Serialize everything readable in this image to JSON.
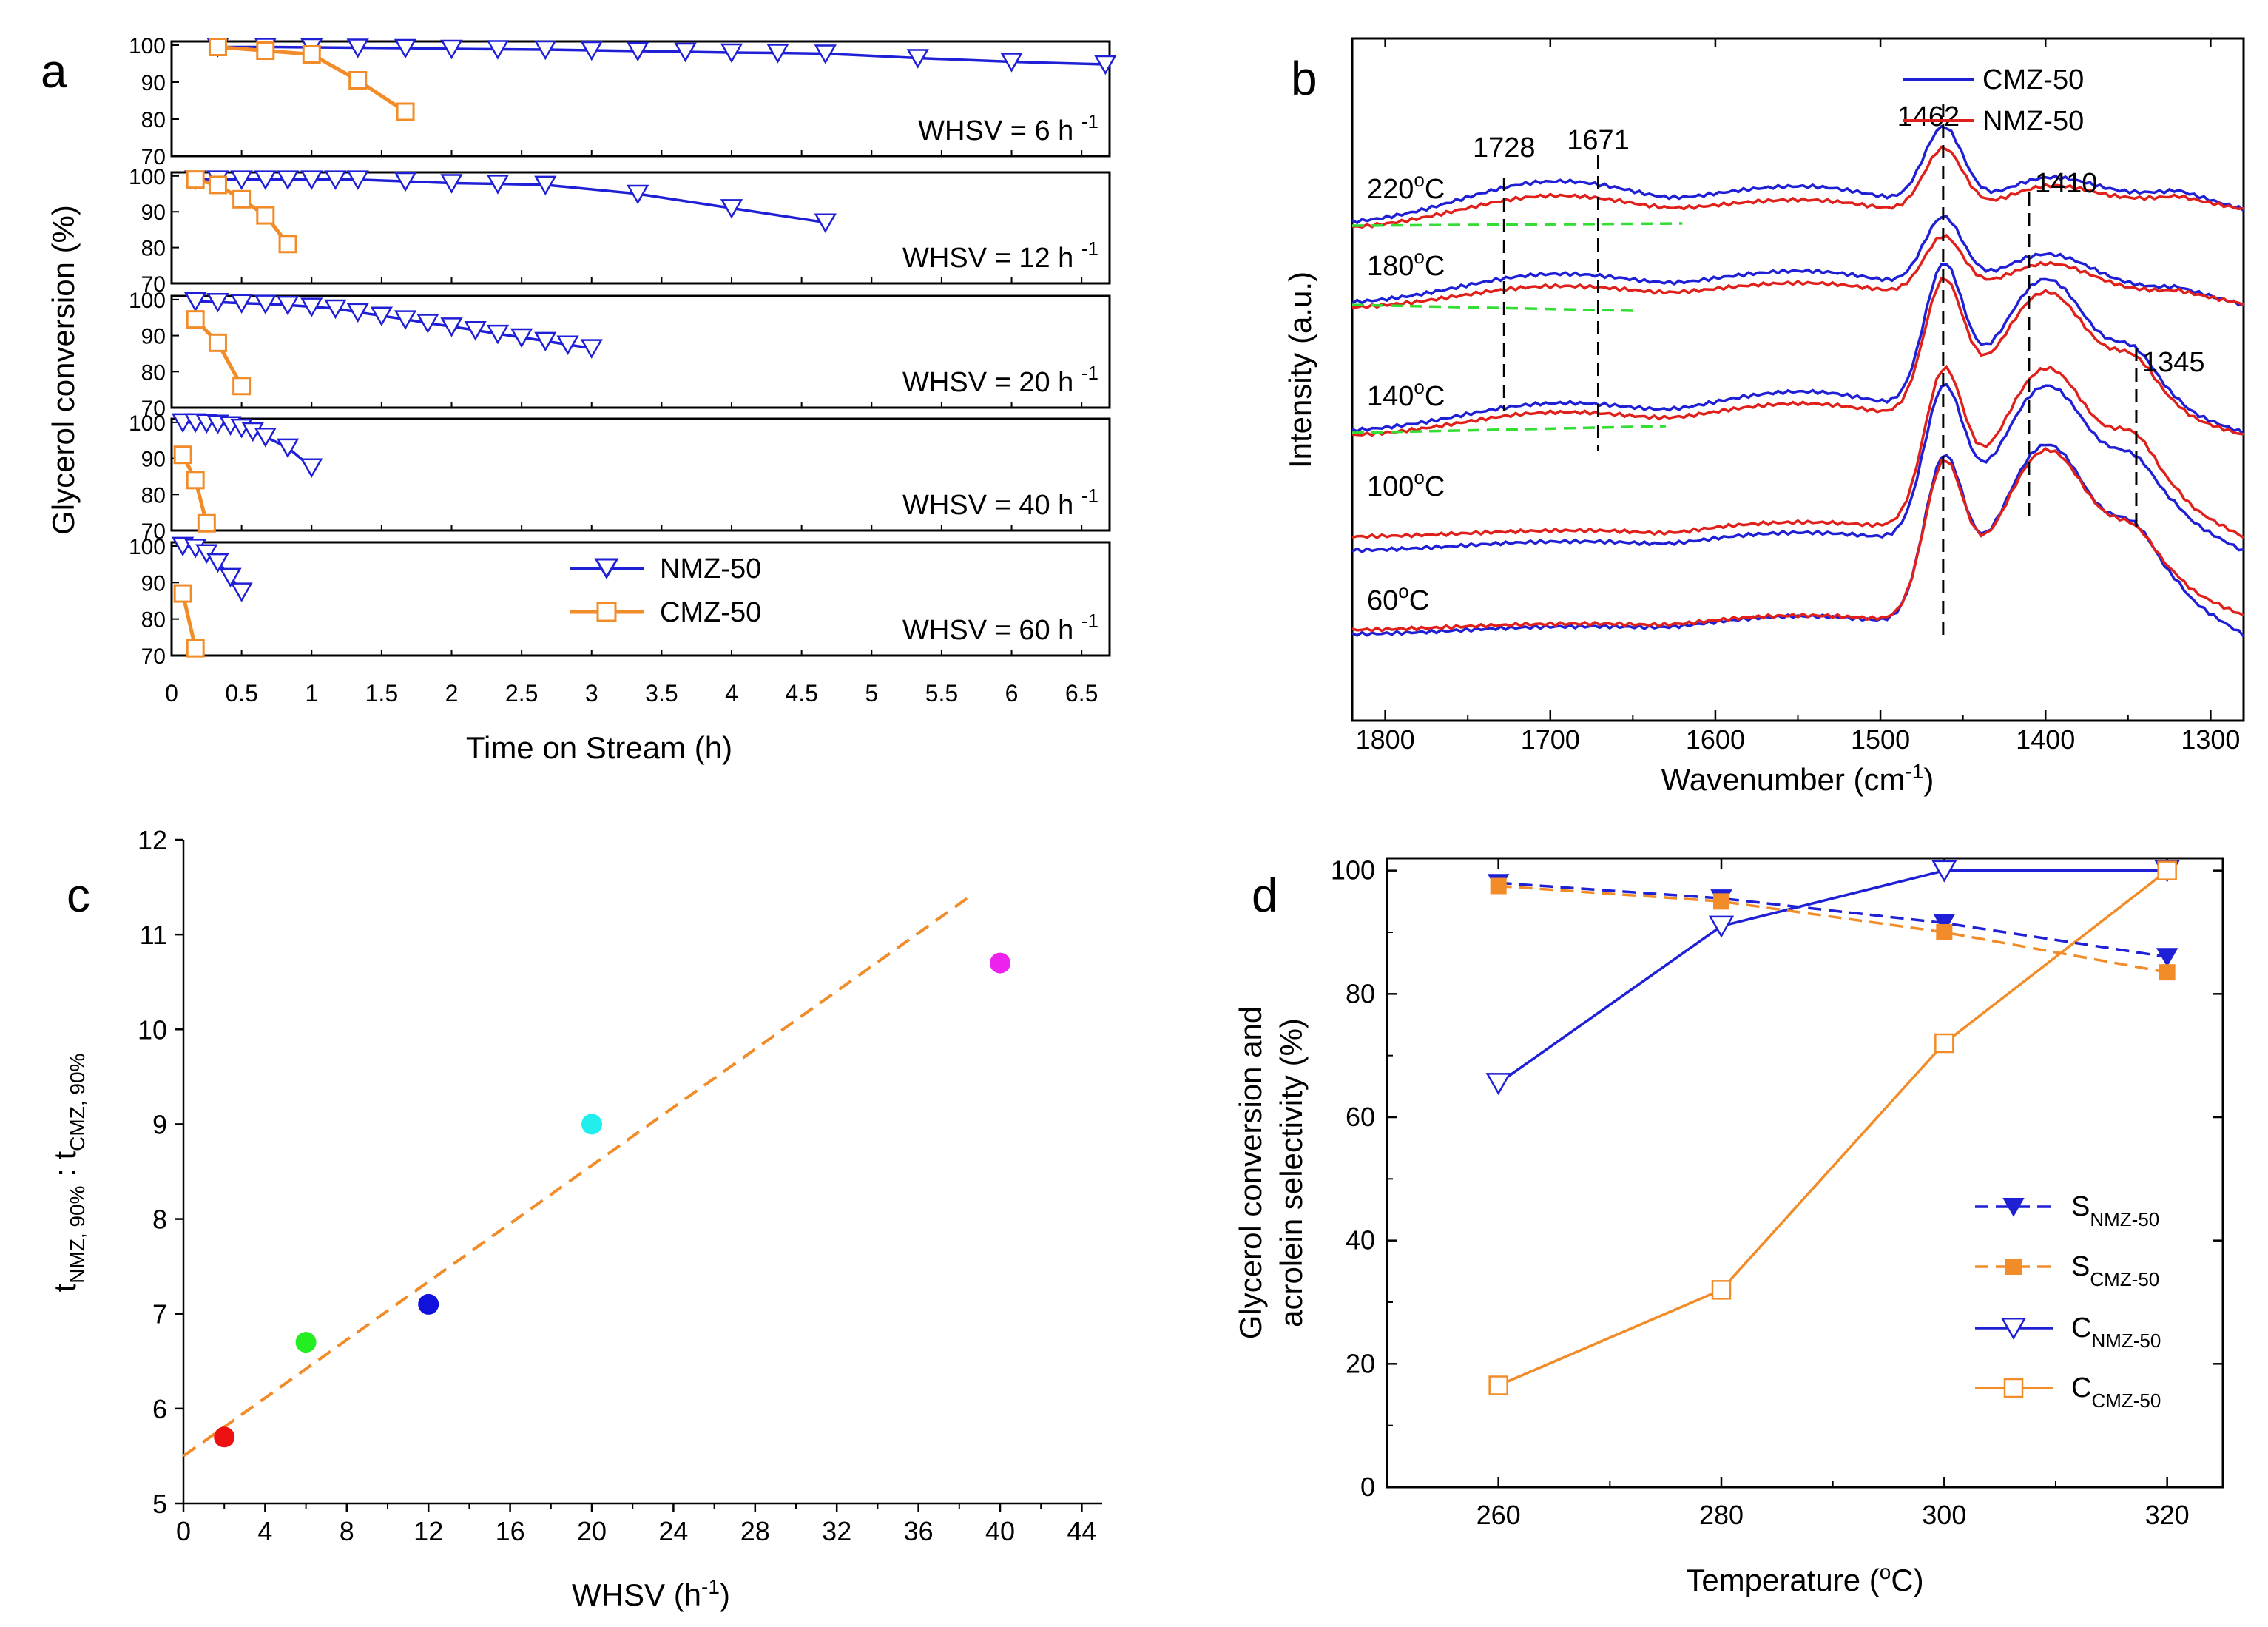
{
  "chart_data": [
    {
      "panel": "a",
      "type": "line",
      "ylabel": "Glycerol conversion (%)",
      "xlabel": "Time on Stream (h)",
      "xlim": [
        0,
        6.7
      ],
      "x_ticks": [
        "0",
        "0.5",
        "1",
        "1.5",
        "2",
        "2.5",
        "3",
        "3.5",
        "4",
        "4.5",
        "5",
        "5.5",
        "6",
        "6.5"
      ],
      "y_ticks": [
        "70",
        "80",
        "90",
        "100"
      ],
      "ylim": [
        70,
        101
      ],
      "legend": [
        "NMZ-50",
        "CMZ-50"
      ],
      "subplots": [
        {
          "label": "WHSV = 6 h",
          "label_sup": "-1",
          "series": [
            {
              "name": "NMZ-50",
              "x": [
                0.33,
                0.67,
                1.0,
                1.33,
                1.67,
                2.0,
                2.33,
                2.67,
                3.0,
                3.33,
                3.67,
                4.0,
                4.33,
                4.67,
                5.33,
                6.0,
                6.67
              ],
              "y": [
                99.5,
                99.5,
                99.4,
                99.3,
                99.2,
                99.0,
                98.9,
                98.8,
                98.6,
                98.4,
                98.2,
                98.0,
                97.9,
                97.7,
                96.5,
                95.5,
                94.8
              ]
            },
            {
              "name": "CMZ-50",
              "x": [
                0.33,
                0.67,
                1.0,
                1.33,
                1.67
              ],
              "y": [
                99.5,
                98.5,
                97.5,
                90.5,
                82
              ]
            }
          ]
        },
        {
          "label": "WHSV = 12 h",
          "label_sup": "-1",
          "series": [
            {
              "name": "NMZ-50",
              "x": [
                0.17,
                0.33,
                0.5,
                0.67,
                0.83,
                1.0,
                1.17,
                1.33,
                1.67,
                2.0,
                2.33,
                2.67,
                3.33,
                4.0,
                4.67
              ],
              "y": [
                99,
                99,
                99,
                99,
                99,
                99,
                99,
                99,
                98.5,
                98,
                97.8,
                97.5,
                95,
                91,
                87
              ]
            },
            {
              "name": "CMZ-50",
              "x": [
                0.17,
                0.33,
                0.5,
                0.67,
                0.83
              ],
              "y": [
                99,
                97.5,
                93.5,
                89,
                81
              ]
            }
          ]
        },
        {
          "label": "WHSV = 20 h",
          "label_sup": "-1",
          "series": [
            {
              "name": "NMZ-50",
              "x": [
                0.17,
                0.33,
                0.5,
                0.67,
                0.83,
                1.0,
                1.17,
                1.33,
                1.5,
                1.67,
                1.83,
                2.0,
                2.17,
                2.33,
                2.5,
                2.67,
                2.83,
                3.0
              ],
              "y": [
                99.5,
                99.3,
                99.0,
                98.8,
                98.5,
                98.0,
                97.5,
                96.5,
                95.5,
                94.5,
                93.5,
                92.5,
                91.5,
                90.5,
                89.5,
                88.5,
                87.5,
                86.5
              ]
            },
            {
              "name": "CMZ-50",
              "x": [
                0.17,
                0.33,
                0.5
              ],
              "y": [
                94.5,
                88,
                76
              ]
            }
          ]
        },
        {
          "label": "WHSV = 40 h",
          "label_sup": "-1",
          "series": [
            {
              "name": "NMZ-50",
              "x": [
                0.08,
                0.17,
                0.25,
                0.33,
                0.42,
                0.5,
                0.58,
                0.67,
                0.83,
                1.0
              ],
              "y": [
                100,
                100,
                99.8,
                99.6,
                99.2,
                98.5,
                97.5,
                96,
                93,
                87.5
              ]
            },
            {
              "name": "CMZ-50",
              "x": [
                0.08,
                0.17,
                0.25
              ],
              "y": [
                91,
                84,
                72
              ]
            }
          ]
        },
        {
          "label": "WHSV = 60 h",
          "label_sup": "-1",
          "series": [
            {
              "name": "NMZ-50",
              "x": [
                0.08,
                0.17,
                0.25,
                0.33,
                0.42,
                0.5
              ],
              "y": [
                100,
                99.5,
                98,
                95.5,
                91.5,
                87.5
              ]
            },
            {
              "name": "CMZ-50",
              "x": [
                0.08,
                0.17
              ],
              "y": [
                87,
                72
              ]
            }
          ]
        }
      ]
    },
    {
      "panel": "b",
      "type": "line",
      "xlabel": "Wavenumber (cm",
      "xlabel_sup": "-1",
      "xlabel_end": ")",
      "ylabel": "Intensity (a.u.)",
      "xlim": [
        1820,
        1280
      ],
      "x_ticks": [
        "1800",
        "1700",
        "1600",
        "1500",
        "1400",
        "1300"
      ],
      "legend": [
        "CMZ-50",
        "NMZ-50"
      ],
      "temperatures": [
        "220",
        "180",
        "140",
        "100",
        "60"
      ],
      "temp_unit": "C",
      "peak_labels": [
        "1728",
        "1671",
        "1462",
        "1410",
        "1345"
      ],
      "peak_positions": [
        1728,
        1671,
        1462,
        1410,
        1345
      ]
    },
    {
      "panel": "c",
      "type": "scatter",
      "xlabel": "WHSV (h",
      "xlabel_sup": "-1",
      "xlabel_end": ")",
      "ylabel_t1": "t",
      "ylabel_sub1": "NMZ, 90%",
      "ylabel_mid": " : t",
      "ylabel_sub2": "CMZ, 90%",
      "xlim": [
        0,
        45
      ],
      "ylim": [
        5,
        12
      ],
      "x_ticks": [
        "0",
        "4",
        "8",
        "12",
        "16",
        "20",
        "24",
        "28",
        "32",
        "36",
        "40",
        "44"
      ],
      "y_ticks": [
        "5",
        "6",
        "7",
        "8",
        "9",
        "10",
        "11",
        "12"
      ],
      "points": [
        {
          "x": 2,
          "y": 5.7,
          "color": "#ee1111"
        },
        {
          "x": 6,
          "y": 6.7,
          "color": "#22ee22"
        },
        {
          "x": 12,
          "y": 7.1,
          "color": "#1111dd"
        },
        {
          "x": 20,
          "y": 9.0,
          "color": "#22eeee"
        },
        {
          "x": 40,
          "y": 10.7,
          "color": "#ee22ee"
        }
      ],
      "fit_line": {
        "x": [
          0,
          38.5
        ],
        "y": [
          5.5,
          11.4
        ]
      }
    },
    {
      "panel": "d",
      "type": "line",
      "xlabel": "Temperature (",
      "xlabel_sup": "o",
      "xlabel_end": "C)",
      "ylabel_line1": "Glycerol conversion and",
      "ylabel_line2": "acrolein selectivity (%)",
      "xlim": [
        250,
        325
      ],
      "ylim": [
        0,
        102
      ],
      "x_ticks": [
        "260",
        "280",
        "300",
        "320"
      ],
      "y_ticks": [
        "0",
        "20",
        "40",
        "60",
        "80",
        "100"
      ],
      "categories": [
        260,
        280,
        300,
        320
      ],
      "series": [
        {
          "name": "S",
          "sub": "NMZ-50",
          "values": [
            98,
            95.5,
            91.5,
            86
          ],
          "color": "#1f1fd6",
          "style": "dashed",
          "marker": "filled-down-triangle"
        },
        {
          "name": "S",
          "sub": "CMZ-50",
          "values": [
            97.5,
            95,
            90,
            83.5
          ],
          "color": "#f28c28",
          "style": "dashed",
          "marker": "filled-square"
        },
        {
          "name": "C",
          "sub": "NMZ-50",
          "values": [
            65.5,
            91,
            100,
            100
          ],
          "color": "#1f1fd6",
          "style": "solid",
          "marker": "open-down-triangle"
        },
        {
          "name": "C",
          "sub": "CMZ-50",
          "values": [
            16.5,
            32,
            72,
            100
          ],
          "color": "#f28c28",
          "style": "solid",
          "marker": "open-square"
        }
      ]
    }
  ],
  "panel_letters": [
    "a",
    "b",
    "c",
    "d"
  ],
  "colors": {
    "blue": "#1f1fd6",
    "orange": "#f28c28",
    "red": "#e0201b",
    "green": "#33dd33"
  }
}
